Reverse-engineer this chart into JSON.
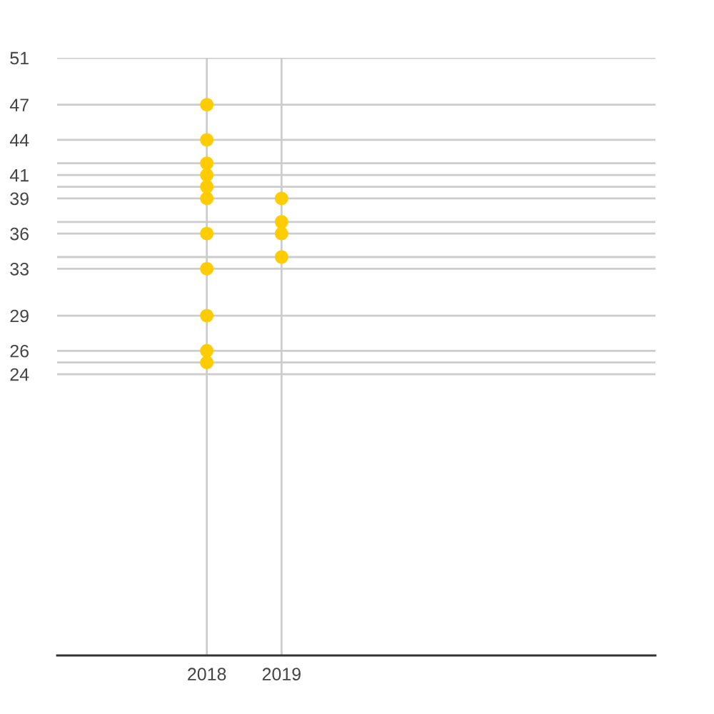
{
  "chart_data": {
    "type": "scatter",
    "x": [
      "2018",
      "2018",
      "2018",
      "2018",
      "2018",
      "2018",
      "2018",
      "2018",
      "2018",
      "2018",
      "2018",
      "2019",
      "2019",
      "2019",
      "2019"
    ],
    "values": [
      47,
      44,
      42,
      41,
      40,
      39,
      36,
      33,
      29,
      26,
      25,
      39,
      37,
      36,
      34
    ],
    "color": "#ffcc00",
    "marker": "circle",
    "xlim": [
      "2016",
      "2024"
    ],
    "xticks": [
      "2018",
      "2019"
    ],
    "ylim": [
      0,
      51
    ],
    "yticks": [
      51,
      47,
      44,
      {
        "value": 42,
        "label": null
      },
      41,
      {
        "value": 40,
        "label": null
      },
      39,
      {
        "value": 37,
        "label": null
      },
      36,
      {
        "value": 34,
        "label": null
      },
      33,
      29,
      26,
      {
        "value": 25,
        "label": null
      },
      24
    ],
    "grid": true
  }
}
